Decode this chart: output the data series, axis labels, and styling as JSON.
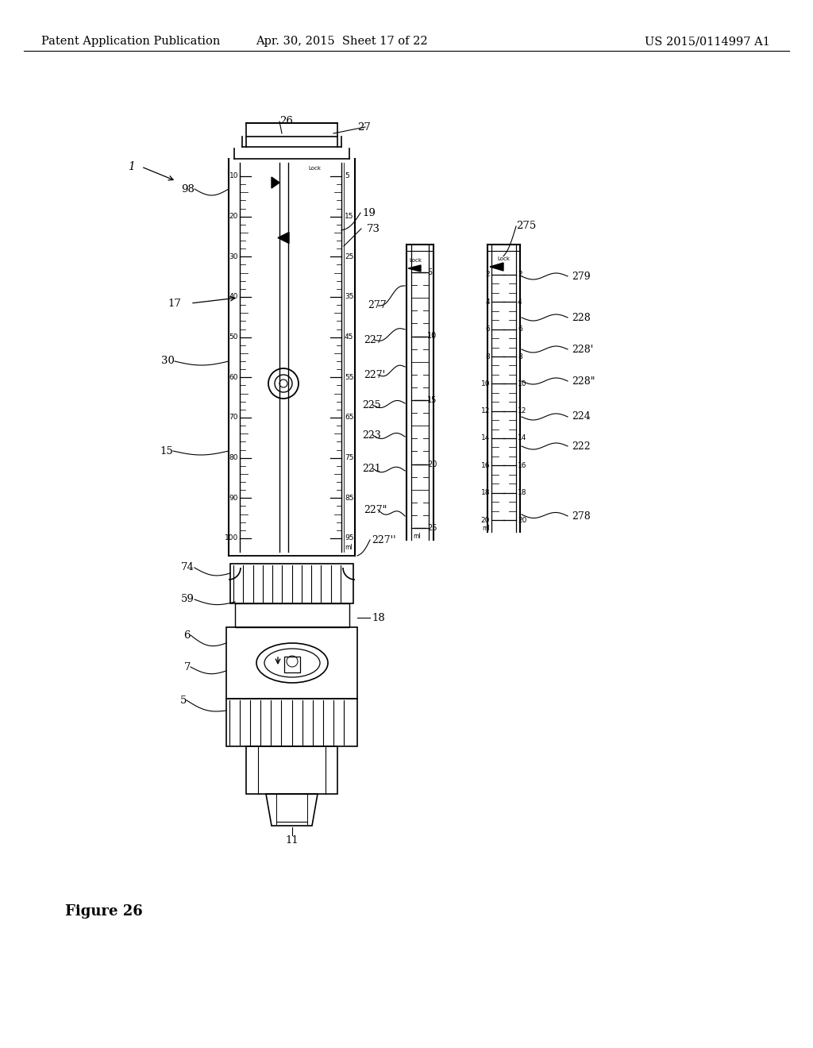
{
  "bg_color": "#ffffff",
  "header_left": "Patent Application Publication",
  "header_center": "Apr. 30, 2015  Sheet 17 of 22",
  "header_right": "US 2015/0114997 A1",
  "figure_label": "Figure 26",
  "header_fontsize": 10.5,
  "fig_label_fontsize": 13
}
